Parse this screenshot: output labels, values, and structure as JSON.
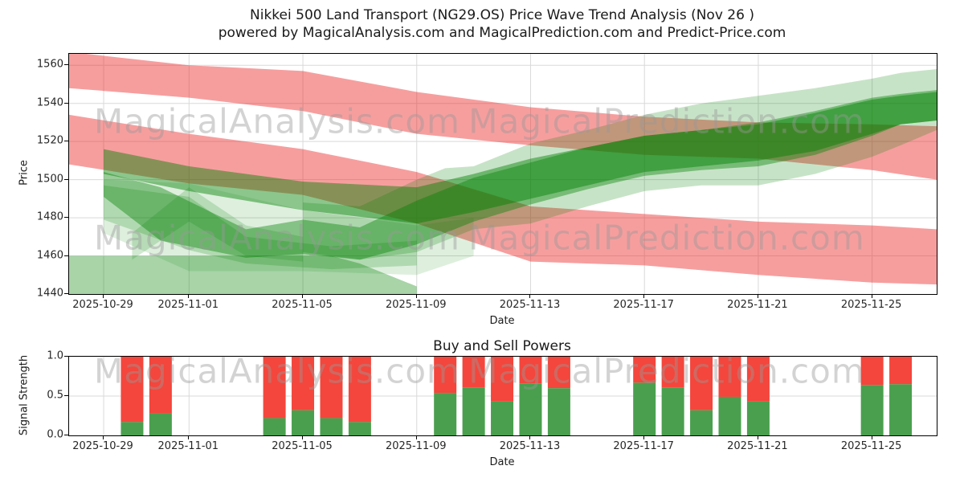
{
  "title": {
    "line1": "Nikkei 500 Land Transport (NG29.OS) Price Wave Trend Analysis (Nov 26 )",
    "line2": "powered by MagicalAnalysis.com and MagicalPrediction.com and Predict-Price.com"
  },
  "watermarks": {
    "left": "MagicalAnalysis.com",
    "right": "MagicalPrediction.com",
    "color": "#999999",
    "opacity": 0.42
  },
  "colors": {
    "band_red": "#eb2828",
    "band_green": "#008000",
    "bar_buy_green": "#4a9f4e",
    "bar_sell_red": "#f4463c",
    "grid": "#d9d9d9",
    "spine": "#000000"
  },
  "chart_data": [
    {
      "type": "area",
      "name": "price-wave-trend",
      "title": "Nikkei 500 Land Transport (NG29.OS) Price Wave Trend Analysis (Nov 26 )",
      "ylabel": "Price",
      "xlabel": "Date",
      "ylim": [
        1440,
        1566
      ],
      "yticks": [
        "1440",
        "1460",
        "1480",
        "1500",
        "1520",
        "1540",
        "1560"
      ],
      "xticks": [
        "2025-10-29",
        "2025-11-01",
        "2025-11-05",
        "2025-11-09",
        "2025-11-13",
        "2025-11-17",
        "2025-11-21",
        "2025-11-25"
      ],
      "x_start": "2025-10-28",
      "x_end": "2025-11-27",
      "grid": true,
      "bands": [
        {
          "name": "support-base",
          "color": "#008000",
          "opacity": 0.34,
          "points": [
            {
              "date": "2025-10-28",
              "lo": 1440,
              "hi": 1460
            },
            {
              "date": "2025-11-06",
              "lo": 1440,
              "hi": 1460
            },
            {
              "date": "2025-11-07",
              "lo": 1440,
              "hi": 1456
            },
            {
              "date": "2025-11-09",
              "lo": 1440,
              "hi": 1444
            }
          ]
        },
        {
          "name": "resistance-upper",
          "color": "#eb2828",
          "opacity": 0.45,
          "points": [
            {
              "date": "2025-10-28",
              "lo": 1548,
              "hi": 1567
            },
            {
              "date": "2025-11-01",
              "lo": 1543,
              "hi": 1560
            },
            {
              "date": "2025-11-05",
              "lo": 1536,
              "hi": 1557
            },
            {
              "date": "2025-11-09",
              "lo": 1524,
              "hi": 1546
            },
            {
              "date": "2025-11-13",
              "lo": 1518,
              "hi": 1538
            },
            {
              "date": "2025-11-17",
              "lo": 1513,
              "hi": 1533
            },
            {
              "date": "2025-11-21",
              "lo": 1511,
              "hi": 1530
            },
            {
              "date": "2025-11-25",
              "lo": 1505,
              "hi": 1529
            },
            {
              "date": "2025-11-27",
              "lo": 1500,
              "hi": 1528
            }
          ]
        },
        {
          "name": "resistance-lower",
          "color": "#eb2828",
          "opacity": 0.45,
          "points": [
            {
              "date": "2025-10-28",
              "lo": 1508,
              "hi": 1534
            },
            {
              "date": "2025-11-01",
              "lo": 1498,
              "hi": 1524
            },
            {
              "date": "2025-11-05",
              "lo": 1492,
              "hi": 1516
            },
            {
              "date": "2025-11-09",
              "lo": 1477,
              "hi": 1504
            },
            {
              "date": "2025-11-13",
              "lo": 1457,
              "hi": 1486
            },
            {
              "date": "2025-11-17",
              "lo": 1455,
              "hi": 1482
            },
            {
              "date": "2025-11-21",
              "lo": 1450,
              "hi": 1478
            },
            {
              "date": "2025-11-25",
              "lo": 1446,
              "hi": 1476
            },
            {
              "date": "2025-11-27",
              "lo": 1445,
              "hi": 1474
            }
          ]
        },
        {
          "name": "support-halo",
          "color": "#008000",
          "opacity": 0.13,
          "points": [
            {
              "date": "2025-10-29",
              "lo": 1472,
              "hi": 1500
            },
            {
              "date": "2025-11-01",
              "lo": 1452,
              "hi": 1498
            },
            {
              "date": "2025-11-05",
              "lo": 1452,
              "hi": 1484
            },
            {
              "date": "2025-11-09",
              "lo": 1450,
              "hi": 1476
            },
            {
              "date": "2025-11-11",
              "lo": 1460,
              "hi": 1480
            }
          ]
        },
        {
          "name": "support-wedge-a",
          "color": "#008000",
          "opacity": 0.2,
          "points": [
            {
              "date": "2025-10-29",
              "lo": 1479,
              "hi": 1497
            },
            {
              "date": "2025-11-01",
              "lo": 1463,
              "hi": 1491
            },
            {
              "date": "2025-11-03",
              "lo": 1456,
              "hi": 1470
            },
            {
              "date": "2025-11-06",
              "lo": 1453,
              "hi": 1465
            },
            {
              "date": "2025-11-09",
              "lo": 1455,
              "hi": 1468
            }
          ]
        },
        {
          "name": "support-wedge-b",
          "color": "#008000",
          "opacity": 0.18,
          "points": [
            {
              "date": "2025-10-30",
              "lo": 1458,
              "hi": 1472
            },
            {
              "date": "2025-11-01",
              "lo": 1478,
              "hi": 1496
            },
            {
              "date": "2025-11-03",
              "lo": 1460,
              "hi": 1476
            },
            {
              "date": "2025-11-05",
              "lo": 1457,
              "hi": 1470
            }
          ]
        },
        {
          "name": "trend-wave-main",
          "color": "#008000",
          "opacity": 0.4,
          "points": [
            {
              "date": "2025-10-29",
              "lo": 1491,
              "hi": 1504
            },
            {
              "date": "2025-10-31",
              "lo": 1468,
              "hi": 1496
            },
            {
              "date": "2025-11-03",
              "lo": 1459,
              "hi": 1474
            },
            {
              "date": "2025-11-05",
              "lo": 1461,
              "hi": 1479
            },
            {
              "date": "2025-11-07",
              "lo": 1458,
              "hi": 1475
            },
            {
              "date": "2025-11-09",
              "lo": 1466,
              "hi": 1489
            },
            {
              "date": "2025-11-11",
              "lo": 1478,
              "hi": 1501
            },
            {
              "date": "2025-11-13",
              "lo": 1487,
              "hi": 1509
            },
            {
              "date": "2025-11-15",
              "lo": 1495,
              "hi": 1517
            },
            {
              "date": "2025-11-17",
              "lo": 1502,
              "hi": 1523
            },
            {
              "date": "2025-11-19",
              "lo": 1505,
              "hi": 1526
            },
            {
              "date": "2025-11-21",
              "lo": 1507,
              "hi": 1530
            },
            {
              "date": "2025-11-23",
              "lo": 1513,
              "hi": 1536
            },
            {
              "date": "2025-11-25",
              "lo": 1523,
              "hi": 1543
            },
            {
              "date": "2025-11-26",
              "lo": 1529,
              "hi": 1545
            },
            {
              "date": "2025-11-27",
              "lo": 1531,
              "hi": 1547
            }
          ]
        },
        {
          "name": "trend-wave-core",
          "color": "#008000",
          "opacity": 0.45,
          "points": [
            {
              "date": "2025-10-29",
              "lo": 1503,
              "hi": 1516
            },
            {
              "date": "2025-11-01",
              "lo": 1494,
              "hi": 1507
            },
            {
              "date": "2025-11-05",
              "lo": 1484,
              "hi": 1499
            },
            {
              "date": "2025-11-09",
              "lo": 1477,
              "hi": 1496
            },
            {
              "date": "2025-11-11",
              "lo": 1483,
              "hi": 1503
            },
            {
              "date": "2025-11-13",
              "lo": 1490,
              "hi": 1511
            },
            {
              "date": "2025-11-15",
              "lo": 1497,
              "hi": 1517
            },
            {
              "date": "2025-11-17",
              "lo": 1504,
              "hi": 1523
            },
            {
              "date": "2025-11-19",
              "lo": 1507,
              "hi": 1526
            },
            {
              "date": "2025-11-21",
              "lo": 1510,
              "hi": 1529
            },
            {
              "date": "2025-11-23",
              "lo": 1515,
              "hi": 1535
            },
            {
              "date": "2025-11-25",
              "lo": 1524,
              "hi": 1542
            },
            {
              "date": "2025-11-26",
              "lo": 1529,
              "hi": 1544
            },
            {
              "date": "2025-11-27",
              "lo": 1531,
              "hi": 1546
            }
          ]
        },
        {
          "name": "trend-wave-outer",
          "color": "#008000",
          "opacity": 0.22,
          "points": [
            {
              "date": "2025-11-05",
              "lo": 1462,
              "hi": 1488
            },
            {
              "date": "2025-11-07",
              "lo": 1458,
              "hi": 1486
            },
            {
              "date": "2025-11-09",
              "lo": 1462,
              "hi": 1500
            },
            {
              "date": "2025-11-10",
              "lo": 1468,
              "hi": 1506
            },
            {
              "date": "2025-11-11",
              "lo": 1474,
              "hi": 1507
            },
            {
              "date": "2025-11-13",
              "lo": 1477,
              "hi": 1519
            },
            {
              "date": "2025-11-15",
              "lo": 1486,
              "hi": 1526
            },
            {
              "date": "2025-11-17",
              "lo": 1494,
              "hi": 1534
            },
            {
              "date": "2025-11-19",
              "lo": 1497,
              "hi": 1540
            },
            {
              "date": "2025-11-21",
              "lo": 1497,
              "hi": 1544
            },
            {
              "date": "2025-11-23",
              "lo": 1503,
              "hi": 1548
            },
            {
              "date": "2025-11-25",
              "lo": 1512,
              "hi": 1553
            },
            {
              "date": "2025-11-26",
              "lo": 1518,
              "hi": 1556
            },
            {
              "date": "2025-11-27",
              "lo": 1526,
              "hi": 1558
            }
          ]
        }
      ]
    },
    {
      "type": "bar",
      "name": "buy-sell-powers",
      "title": "Buy and Sell Powers",
      "ylabel": "Signal Strength",
      "xlabel": "Date",
      "ylim": [
        0,
        1
      ],
      "stacked": true,
      "grid": true,
      "yticks": [
        "0.0",
        "0.5",
        "1.0"
      ],
      "xticks": [
        "2025-10-29",
        "2025-11-01",
        "2025-11-05",
        "2025-11-09",
        "2025-11-13",
        "2025-11-17",
        "2025-11-21",
        "2025-11-25"
      ],
      "categories": [
        "2025-10-30",
        "2025-10-31",
        "2025-11-04",
        "2025-11-05",
        "2025-11-06",
        "2025-11-07",
        "2025-11-10",
        "2025-11-11",
        "2025-11-12",
        "2025-11-13",
        "2025-11-14",
        "2025-11-17",
        "2025-11-18",
        "2025-11-19",
        "2025-11-20",
        "2025-11-21",
        "2025-11-25",
        "2025-11-26"
      ],
      "series": [
        {
          "name": "Buy",
          "color": "#4a9f4e",
          "values": [
            0.17,
            0.28,
            0.22,
            0.32,
            0.22,
            0.17,
            0.54,
            0.61,
            0.43,
            0.66,
            0.6,
            0.67,
            0.61,
            0.32,
            0.49,
            0.43,
            0.64,
            0.65
          ]
        },
        {
          "name": "Sell",
          "color": "#f4463c",
          "values": [
            0.83,
            0.72,
            0.78,
            0.68,
            0.78,
            0.83,
            0.46,
            0.39,
            0.57,
            0.34,
            0.4,
            0.33,
            0.39,
            0.68,
            0.51,
            0.57,
            0.36,
            0.35
          ]
        }
      ]
    }
  ]
}
